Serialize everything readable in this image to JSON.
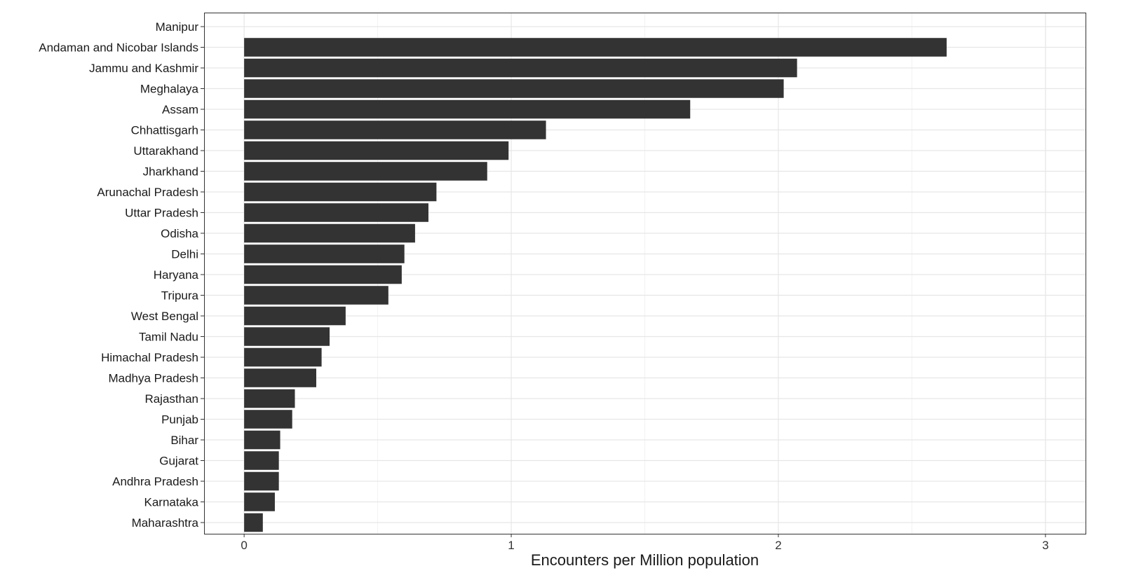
{
  "chart_data": {
    "type": "bar",
    "orientation": "horizontal",
    "title": "",
    "xlabel": "Encounters per Million population",
    "ylabel": "",
    "xlim": [
      -0.15,
      3.15
    ],
    "xticks": [
      "0",
      "1",
      "2",
      "3"
    ],
    "grid": true,
    "bar_color": "#333333",
    "categories": [
      "Manipur",
      "Andaman and Nicobar Islands",
      "Jammu and Kashmir",
      "Meghalaya",
      "Assam",
      "Chhattisgarh",
      "Uttarakhand",
      "Jharkhand",
      "Arunachal Pradesh",
      "Uttar Pradesh",
      "Odisha",
      "Delhi",
      "Haryana",
      "Tripura",
      "West Bengal",
      "Tamil Nadu",
      "Himachal Pradesh",
      "Madhya Pradesh",
      "Rajasthan",
      "Punjab",
      "Bihar",
      "Gujarat",
      "Andhra Pradesh",
      "Karnataka",
      "Maharashtra"
    ],
    "values": [
      0,
      2.63,
      2.07,
      2.02,
      1.67,
      1.13,
      0.99,
      0.91,
      0.72,
      0.69,
      0.64,
      0.6,
      0.59,
      0.54,
      0.38,
      0.32,
      0.29,
      0.27,
      0.19,
      0.18,
      0.135,
      0.13,
      0.13,
      0.115,
      0.07
    ]
  }
}
